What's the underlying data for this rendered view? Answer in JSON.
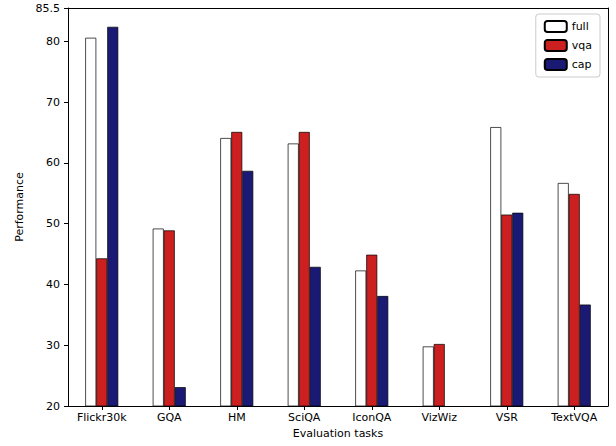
{
  "chart_data": {
    "type": "bar",
    "x_label": "Evaluation tasks",
    "y_label": "Performance",
    "categories": [
      "Flickr30k",
      "GQA",
      "HM",
      "SciQA",
      "IconQA",
      "VizWiz",
      "VSR",
      "TextVQA"
    ],
    "series": [
      {
        "name": "full",
        "color": "#ffffff",
        "values": [
          80.6,
          49.2,
          64.1,
          63.2,
          42.3,
          29.8,
          65.9,
          56.7
        ]
      },
      {
        "name": "vqa",
        "color": "#cc1f1f",
        "values": [
          44.3,
          48.9,
          65.1,
          65.1,
          44.9,
          30.2,
          51.5,
          54.9
        ]
      },
      {
        "name": "cap",
        "color": "#1a1a75",
        "values": [
          82.4,
          23.1,
          58.7,
          42.9,
          38.1,
          null,
          51.8,
          36.7
        ]
      }
    ],
    "ylim": [
      20,
      85.5
    ],
    "yticks": [
      20,
      30,
      40,
      50,
      60,
      70,
      80
    ],
    "grid": false,
    "legend": "upper right"
  }
}
